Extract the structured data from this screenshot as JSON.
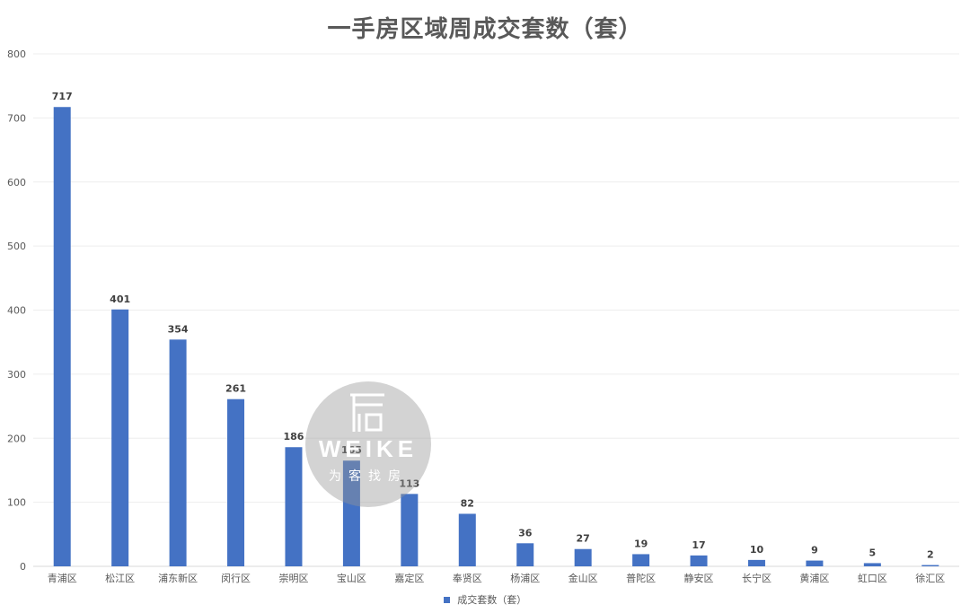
{
  "chart_data": {
    "type": "bar",
    "title": "一手房区域周成交套数（套）",
    "categories": [
      "青浦区",
      "松江区",
      "浦东新区",
      "闵行区",
      "崇明区",
      "宝山区",
      "嘉定区",
      "奉贤区",
      "杨浦区",
      "金山区",
      "普陀区",
      "静安区",
      "长宁区",
      "黄浦区",
      "虹口区",
      "徐汇区"
    ],
    "series": [
      {
        "name": "成交套数（套）",
        "color": "#4472C4",
        "values": [
          717,
          401,
          354,
          261,
          186,
          165,
          113,
          82,
          36,
          27,
          19,
          17,
          10,
          9,
          5,
          2
        ]
      }
    ],
    "ylim": [
      0,
      800
    ],
    "yticks": [
      0,
      100,
      200,
      300,
      400,
      500,
      600,
      700,
      800
    ],
    "grid": true,
    "legend_position": "bottom",
    "data_labels": true
  },
  "watermark": {
    "brand": "WEIKE",
    "subtitle": "为客找房"
  }
}
